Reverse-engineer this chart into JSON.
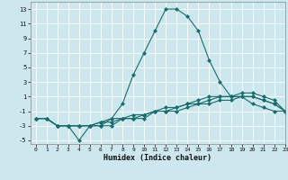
{
  "title": "",
  "xlabel": "Humidex (Indice chaleur)",
  "xlim": [
    -0.5,
    23
  ],
  "ylim": [
    -5.5,
    14
  ],
  "yticks": [
    -5,
    -3,
    -1,
    1,
    3,
    5,
    7,
    9,
    11,
    13
  ],
  "xticks": [
    0,
    1,
    2,
    3,
    4,
    5,
    6,
    7,
    8,
    9,
    10,
    11,
    12,
    13,
    14,
    15,
    16,
    17,
    18,
    19,
    20,
    21,
    22,
    23
  ],
  "bg_color": "#cce8ee",
  "line_color": "#1a6b6b",
  "grid_color": "#ffffff",
  "line1_x": [
    0,
    1,
    2,
    3,
    4,
    5,
    6,
    7,
    8,
    9,
    10,
    11,
    12,
    13,
    14,
    15,
    16,
    17,
    18,
    19,
    20,
    21,
    22,
    23
  ],
  "line1_y": [
    -2,
    -2,
    -3,
    -3,
    -5,
    -3,
    -3,
    -2,
    0,
    4,
    7,
    10,
    13,
    13,
    12,
    10,
    6,
    3,
    1,
    1,
    0,
    -0.5,
    -1,
    -1
  ],
  "line2_x": [
    0,
    1,
    2,
    3,
    4,
    5,
    6,
    7,
    8,
    9,
    10,
    11,
    12,
    13,
    14,
    15,
    16,
    17,
    18,
    19,
    20,
    21,
    22,
    23
  ],
  "line2_y": [
    -2,
    -2,
    -3,
    -3,
    -3,
    -3,
    -3,
    -3,
    -2,
    -2,
    -2,
    -1,
    -1,
    -1,
    -0.5,
    0,
    0,
    0.5,
    0.5,
    1,
    1,
    0.5,
    0,
    -1
  ],
  "line3_x": [
    0,
    1,
    2,
    3,
    4,
    5,
    6,
    7,
    8,
    9,
    10,
    11,
    12,
    13,
    14,
    15,
    16,
    17,
    18,
    19,
    20,
    21,
    22,
    23
  ],
  "line3_y": [
    -2,
    -2,
    -3,
    -3,
    -3,
    -3,
    -2.5,
    -2.5,
    -2,
    -2,
    -1.5,
    -1,
    -1,
    -0.5,
    0,
    0,
    0.5,
    1,
    1,
    1,
    1,
    0.5,
    0,
    -1
  ],
  "line4_x": [
    0,
    1,
    2,
    3,
    4,
    5,
    6,
    7,
    8,
    9,
    10,
    11,
    12,
    13,
    14,
    15,
    16,
    17,
    18,
    19,
    20,
    21,
    22,
    23
  ],
  "line4_y": [
    -2,
    -2,
    -3,
    -3,
    -3,
    -3,
    -2.5,
    -2,
    -2,
    -1.5,
    -1.5,
    -1,
    -0.5,
    -0.5,
    0,
    0.5,
    1,
    1,
    1,
    1.5,
    1.5,
    1,
    0.5,
    -1
  ]
}
